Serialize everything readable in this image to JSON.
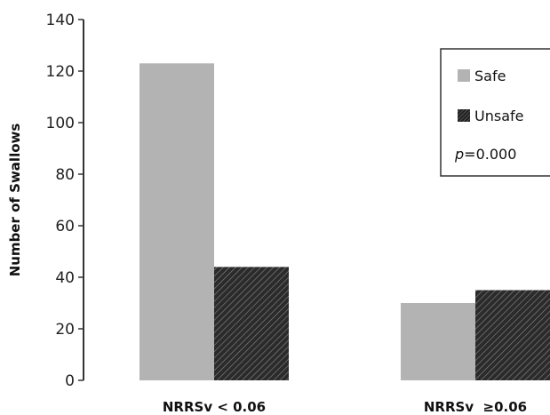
{
  "chart_data": {
    "type": "bar",
    "categories": [
      "NRRSv < 0.06",
      "NRRSv  ≥0.06"
    ],
    "series": [
      {
        "name": "Safe",
        "values": [
          123,
          30
        ],
        "color": "#b3b3b3",
        "pattern": "solid"
      },
      {
        "name": "Unsafe",
        "values": [
          44,
          35
        ],
        "color": "#333333",
        "pattern": "hatch"
      }
    ],
    "ylabel": "Number of Swallows",
    "xlabel": "",
    "ylim": [
      0,
      140
    ],
    "yticks": [
      0,
      20,
      40,
      60,
      80,
      100,
      120,
      140
    ],
    "legend": {
      "placement": "right",
      "entries": [
        "Safe",
        "Unsafe"
      ],
      "annotation_prefix": "p",
      "annotation_value": "=0.000"
    },
    "grid": false
  }
}
